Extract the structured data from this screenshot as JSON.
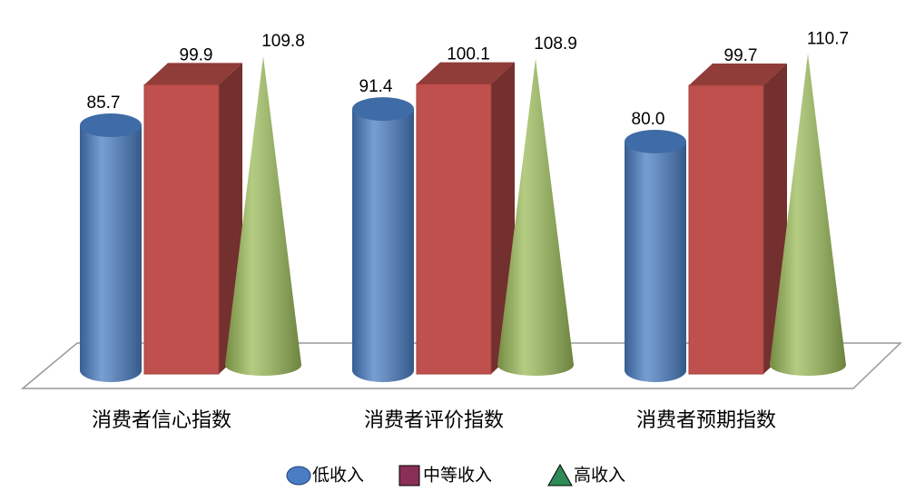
{
  "chart_data": {
    "type": "bar",
    "categories": [
      "消费者信心指数",
      "消费者评价指数",
      "消费者预期指数"
    ],
    "series": [
      {
        "name": "低收入",
        "color": "#4a7ec4",
        "values": [
          85.7,
          91.4,
          80.0
        ],
        "value_labels": [
          "85.7",
          "91.4",
          "80.0"
        ]
      },
      {
        "name": "中等收入",
        "color": "#c0504d",
        "values": [
          99.9,
          100.1,
          99.7
        ],
        "value_labels": [
          "99.9",
          "100.1",
          "99.7"
        ]
      },
      {
        "name": "高收入",
        "color": "#9bbb59",
        "values": [
          109.8,
          108.9,
          110.7
        ],
        "value_labels": [
          "109.8",
          "108.9",
          "110.7"
        ]
      }
    ]
  }
}
